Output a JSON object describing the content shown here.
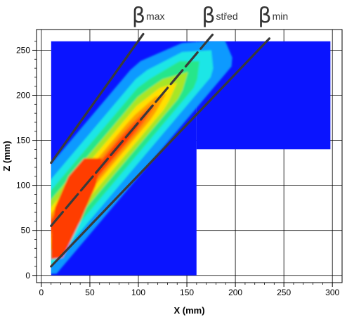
{
  "chart_data": {
    "type": "heatmap",
    "xlabel": "X (mm)",
    "ylabel": "Z (mm)",
    "xlim": [
      -5,
      310
    ],
    "ylim": [
      -8,
      273
    ],
    "x_ticks": [
      0,
      50,
      100,
      150,
      200,
      250,
      300
    ],
    "y_ticks": [
      0,
      50,
      100,
      150,
      200,
      250
    ],
    "grid": true,
    "domain_regions": [
      {
        "x": [
          10,
          160
        ],
        "z": [
          0,
          260
        ]
      },
      {
        "x": [
          160,
          298
        ],
        "z": [
          140,
          260
        ]
      }
    ],
    "background_color": "#0a14ff",
    "lines": [
      {
        "label_symbol": "β",
        "label_sub": "max",
        "style": "solid",
        "points": [
          [
            10,
            125
          ],
          [
            105,
            268
          ]
        ]
      },
      {
        "label_symbol": "β",
        "label_sub": "střed",
        "style": "dashed",
        "points": [
          [
            10,
            55
          ],
          [
            177,
            268
          ]
        ]
      },
      {
        "label_symbol": "β",
        "label_sub": "min",
        "style": "solid",
        "points": [
          [
            10,
            10
          ],
          [
            235,
            263
          ]
        ]
      }
    ],
    "colors": {
      "line": "#3a3a3a",
      "band": [
        "#0a14ff",
        "#0a9aff",
        "#1ee6e6",
        "#28e68a",
        "#a8e628",
        "#ffe000",
        "#ffa000",
        "#ff6a10",
        "#ff3c00"
      ]
    }
  }
}
